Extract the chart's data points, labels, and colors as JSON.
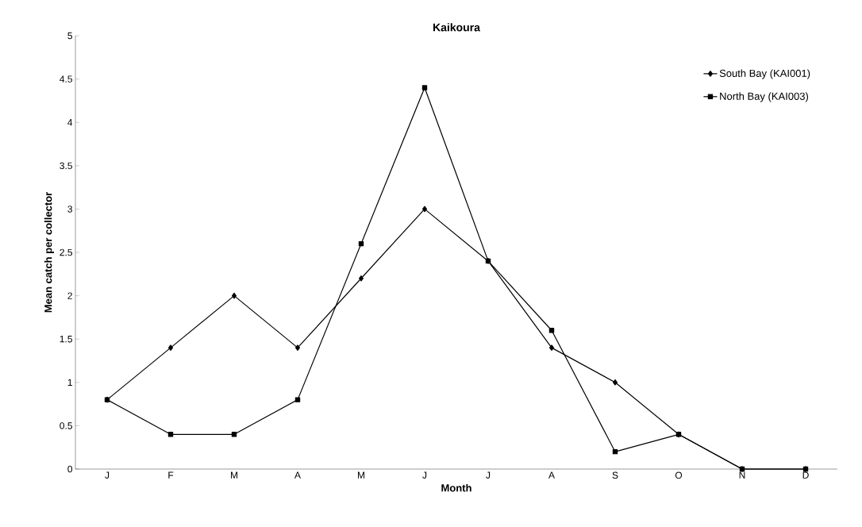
{
  "chart_data": {
    "type": "line",
    "title": "Kaikoura",
    "xlabel": "Month",
    "ylabel": "Mean catch per collector",
    "categories": [
      "J",
      "F",
      "M",
      "A",
      "M",
      "J",
      "J",
      "A",
      "S",
      "O",
      "N",
      "D"
    ],
    "series": [
      {
        "name": "South Bay (KAI001)",
        "color": "#000000",
        "marker": "diamond",
        "values": [
          0.8,
          1.4,
          2.0,
          1.4,
          2.2,
          3.0,
          2.4,
          1.4,
          1.0,
          0.4,
          0,
          0
        ]
      },
      {
        "name": "North Bay (KAI003)",
        "color": "#000000",
        "marker": "square",
        "values": [
          0.8,
          0.4,
          0.4,
          0.8,
          2.6,
          4.4,
          2.4,
          1.6,
          0.2,
          0.4,
          0,
          0
        ]
      }
    ],
    "ylim": [
      0,
      5
    ],
    "yticks": [
      0,
      0.5,
      1,
      1.5,
      2,
      2.5,
      3,
      3.5,
      4,
      4.5,
      5
    ],
    "grid": false,
    "legend": "top right",
    "line_style": "solid"
  }
}
